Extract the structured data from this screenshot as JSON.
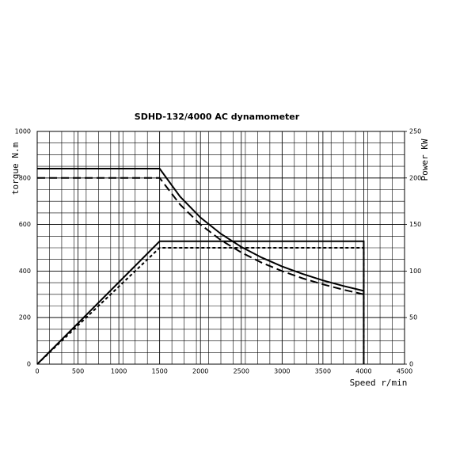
{
  "chart_data": {
    "type": "line",
    "title": "SDHD-132/4000 AC dynamometer",
    "x_label": "Speed r/min",
    "y_label": "torque N.m",
    "y2_label": "Power KW",
    "xlim": [
      0,
      4500
    ],
    "xticks": [
      0,
      500,
      1000,
      1500,
      2000,
      2500,
      3000,
      3500,
      4000,
      4500
    ],
    "ylim": [
      0,
      1000
    ],
    "yticks": [
      0,
      200,
      400,
      600,
      800,
      1000
    ],
    "y2lim": [
      0,
      250
    ],
    "y2ticks": [
      0,
      50,
      100,
      150,
      200,
      250
    ],
    "grid": true,
    "series": [
      {
        "color": "#000000",
        "dash": "solid",
        "x": [
          0,
          1500,
          1750,
          2000,
          2250,
          2500,
          2750,
          3000,
          3250,
          3500,
          3750,
          4000
        ],
        "values": [
          840,
          840,
          720,
          630,
          560,
          504,
          458,
          420,
          388,
          360,
          336,
          315
        ]
      },
      {
        "color": "#000000",
        "dash": "long",
        "x": [
          0,
          1500,
          1750,
          2000,
          2250,
          2500,
          2750,
          3000,
          3250,
          3500,
          3750,
          4000
        ],
        "values": [
          800,
          800,
          686,
          600,
          533,
          480,
          436,
          400,
          369,
          343,
          320,
          300
        ]
      },
      {
        "color": "#000000",
        "dash": "solid",
        "axis": "y2",
        "x": [
          0,
          1500,
          4000,
          4000
        ],
        "values": [
          0,
          132,
          132,
          0
        ]
      },
      {
        "color": "#000000",
        "dash": "short",
        "axis": "y2",
        "x": [
          0,
          1500,
          4000,
          4000
        ],
        "values": [
          0,
          125,
          125,
          0
        ]
      }
    ]
  }
}
